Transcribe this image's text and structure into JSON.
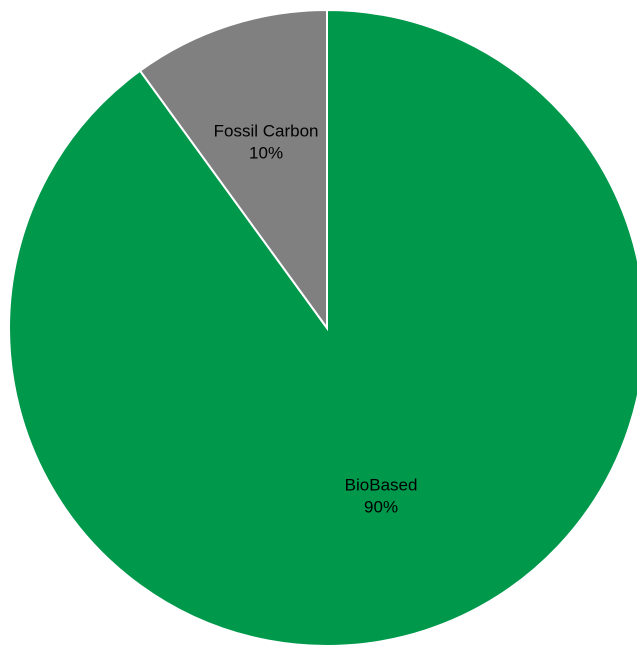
{
  "chart_data": {
    "type": "pie",
    "categories": [
      "BioBased",
      "Fossil Carbon"
    ],
    "values": [
      90,
      10
    ],
    "labels": [
      "90%",
      "10%"
    ],
    "colors": [
      "#00994c",
      "#808080"
    ],
    "title": "",
    "start_angle_deg": 0,
    "direction": "clockwise",
    "legend": "none"
  }
}
